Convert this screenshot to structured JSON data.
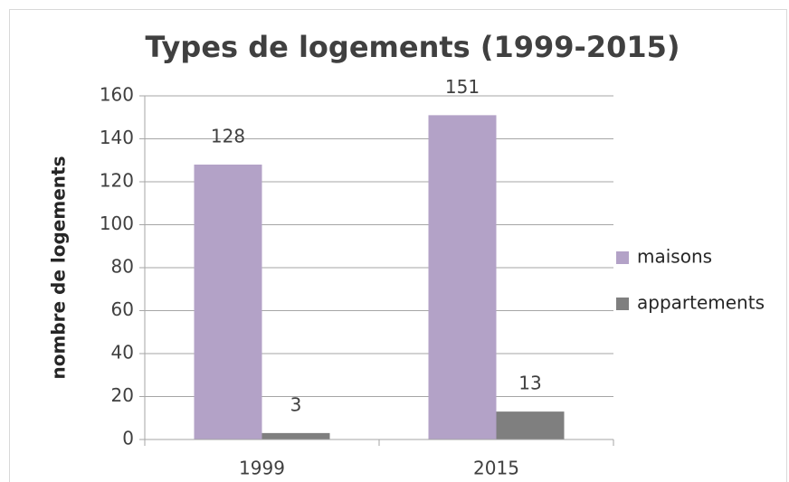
{
  "chart_data": {
    "type": "bar",
    "title": "Types de logements (1999-2015)",
    "y_label": "nombre de logements",
    "categories": [
      "1999",
      "2015"
    ],
    "series": [
      {
        "name": "maisons",
        "color": "#b3a2c7",
        "values": [
          128,
          151
        ]
      },
      {
        "name": "appartements",
        "color": "#7f7f7f",
        "values": [
          3,
          13
        ]
      }
    ],
    "ylim": [
      0,
      160
    ],
    "yticks": [
      0,
      20,
      40,
      60,
      80,
      100,
      120,
      140,
      160
    ],
    "grid": true,
    "legend": "right"
  }
}
